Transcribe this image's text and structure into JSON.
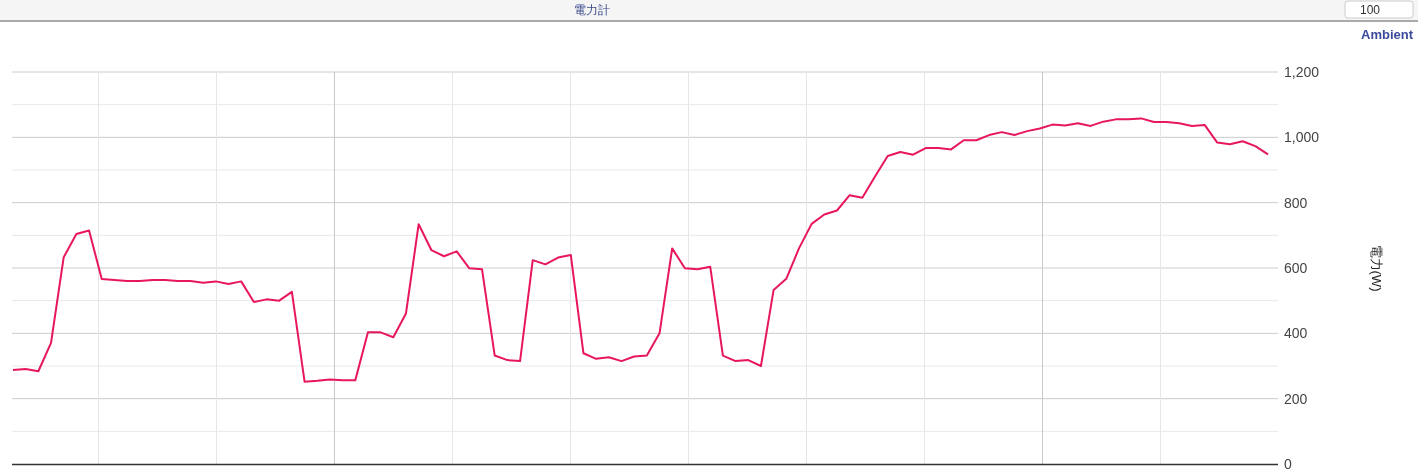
{
  "chart_data": {
    "type": "line",
    "title": "電力計",
    "subtitle": "Ambient",
    "ylabel": "電力(W)",
    "annotations": [
      "100"
    ],
    "categories": [
      null,
      null,
      null,
      null,
      null,
      null,
      null,
      null,
      null,
      null,
      null,
      null,
      null,
      null,
      null,
      null,
      null,
      null,
      null,
      null,
      null,
      null,
      null,
      null,
      null,
      null,
      null,
      null,
      null,
      null,
      null,
      null,
      null,
      null,
      null,
      null,
      null,
      null,
      null,
      null,
      null,
      null,
      null,
      null,
      null,
      null,
      null,
      null,
      null,
      null,
      null,
      null,
      null,
      null,
      null,
      null,
      null,
      null,
      null,
      null,
      null,
      null,
      null,
      null,
      null,
      null,
      null,
      null,
      null,
      null,
      null,
      null,
      null,
      null,
      null,
      null,
      null,
      null,
      null,
      null,
      null,
      null,
      null,
      null,
      null,
      null,
      null,
      null,
      null,
      null,
      null,
      null,
      null,
      null,
      null,
      null,
      null,
      null,
      null,
      null
    ],
    "series": [
      {
        "color": "#e8175d",
        "values": [
          288,
          291,
          284,
          371,
          633,
          704,
          715,
          566,
          563,
          560,
          560,
          563,
          563,
          560,
          560,
          555,
          559,
          551,
          559,
          496,
          504,
          500,
          527,
          252,
          255,
          259,
          256,
          256,
          403,
          403,
          388,
          461,
          734,
          655,
          636,
          651,
          599,
          596,
          332,
          318,
          315,
          624,
          611,
          632,
          640,
          339,
          322,
          327,
          315,
          329,
          332,
          400,
          660,
          599,
          596,
          604,
          332,
          315,
          318,
          300,
          533,
          567,
          660,
          735,
          764,
          776,
          823,
          815,
          880,
          943,
          955,
          947,
          967,
          967,
          963,
          991,
          991,
          1007,
          1016,
          1007,
          1019,
          1027,
          1039,
          1036,
          1043,
          1035,
          1048,
          1055,
          1055,
          1058,
          1047,
          1047,
          1043,
          1035,
          1038,
          984,
          979,
          988,
          973,
          948
        ]
      }
    ],
    "ylim": [
      0,
      1200
    ],
    "yticks": [
      0,
      200,
      400,
      600,
      800,
      {
        "value": 1000,
        "label": "1,000"
      },
      {
        "value": 1200,
        "label": "1,200"
      }
    ],
    "grid": true,
    "marker": "none",
    "line_style": "solid"
  }
}
